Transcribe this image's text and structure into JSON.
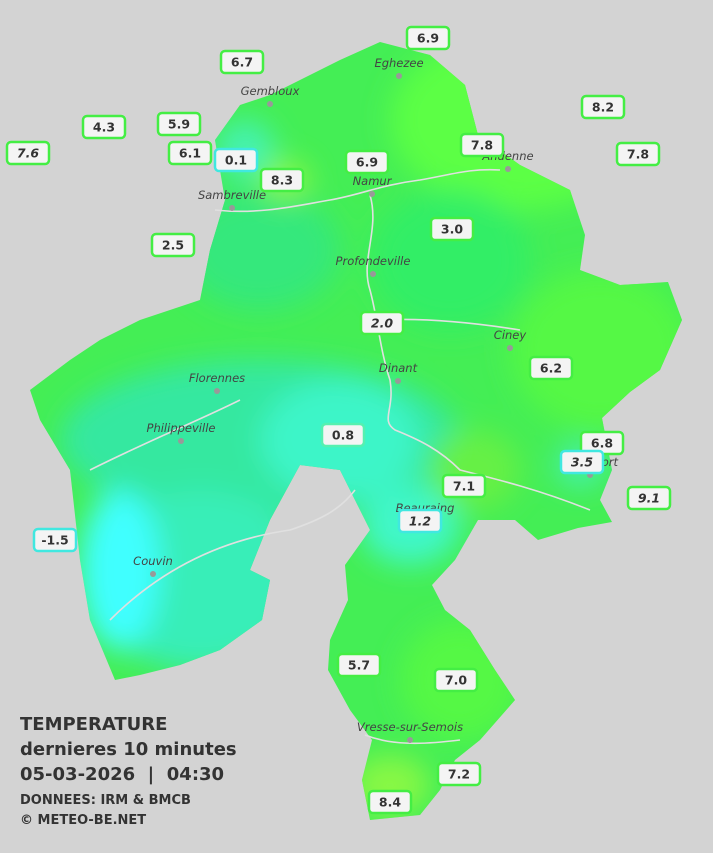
{
  "legend": {
    "title": "TEMPERATURE",
    "subtitle": "dernieres 10 minutes",
    "datetime": "05-03-2026  |  04:30",
    "source": "DONNEES: IRM & BMCB",
    "copyright": "© METEO-BE.NET"
  },
  "cities": [
    "Eghezee",
    "Gembloux",
    "Andenne",
    "Namur",
    "Sambreville",
    "Profondeville",
    "Ciney",
    "Dinant",
    "Florennes",
    "Philippeville",
    "Rochefort",
    "Beauraing",
    "Couvin",
    "Vresse-sur-Semois"
  ],
  "stations": [
    "6.9",
    "6.7",
    "4.3",
    "5.9",
    "7.6",
    "6.1",
    "0.1",
    "8.3",
    "6.9",
    "7.8",
    "8.2",
    "7.8",
    "2.5",
    "3.0",
    "2.0",
    "6.2",
    "0.8",
    "6.8",
    "3.5",
    "7.1",
    "9.1",
    "1.2",
    "-1.5",
    "5.7",
    "7.0",
    "7.2",
    "8.4"
  ]
}
